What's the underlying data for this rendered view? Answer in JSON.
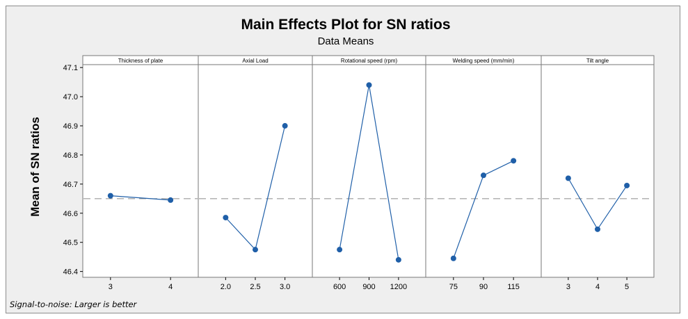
{
  "chart_data": {
    "type": "line",
    "title": "Main Effects Plot for SN ratios",
    "subtitle": "Data Means",
    "ylabel": "Mean of SN ratios",
    "ylim": [
      46.38,
      47.11
    ],
    "yticks": [
      "46.4",
      "46.5",
      "46.6",
      "46.7",
      "46.8",
      "46.9",
      "47.0",
      "47.1"
    ],
    "reference_mean": 46.65,
    "panels": [
      {
        "label": "Thickness of plate",
        "categories": [
          "3",
          "4"
        ],
        "values": [
          46.66,
          46.645
        ]
      },
      {
        "label": "Axial Load",
        "categories": [
          "2.0",
          "2.5",
          "3.0"
        ],
        "values": [
          46.585,
          46.475,
          46.9
        ]
      },
      {
        "label": "Rotational speed (rpm)",
        "categories": [
          "600",
          "900",
          "1200"
        ],
        "values": [
          46.475,
          47.04,
          46.44
        ]
      },
      {
        "label": "Welding speed (mm/min)",
        "categories": [
          "75",
          "90",
          "115"
        ],
        "values": [
          46.445,
          46.73,
          46.78
        ]
      },
      {
        "label": "Tilt angle",
        "categories": [
          "3",
          "4",
          "5"
        ],
        "values": [
          46.72,
          46.545,
          46.695
        ]
      }
    ],
    "footnote": "Signal-to-noise: Larger is better"
  },
  "colors": {
    "series": "#1f5fa8",
    "background": "#efefef",
    "plot": "#ffffff",
    "reference": "#8a8a8a"
  }
}
